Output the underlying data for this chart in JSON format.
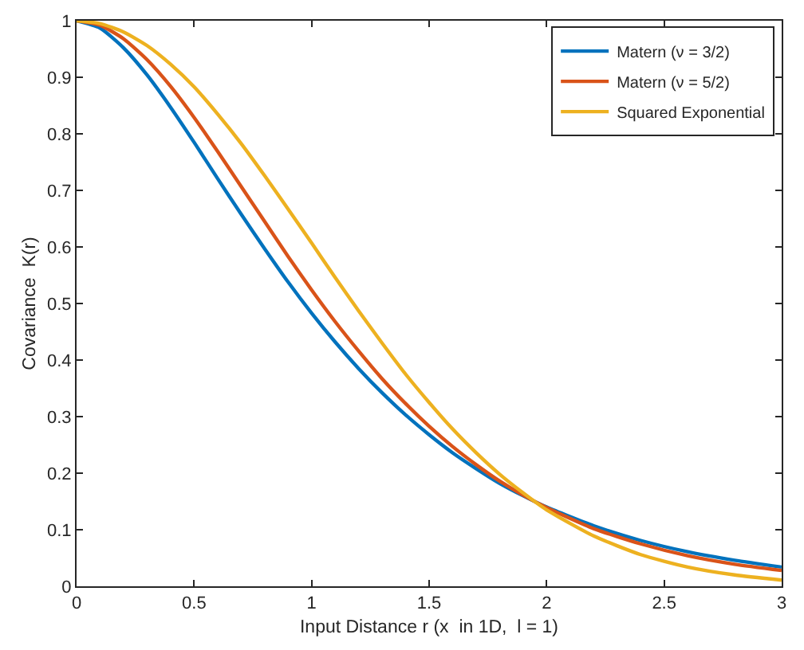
{
  "chart_data": {
    "type": "line",
    "xlabel": "Input Distance r (x  in 1D,  l = 1)",
    "ylabel": "Covariance  K(r)",
    "x": [
      0,
      0.1,
      0.2,
      0.3,
      0.4,
      0.5,
      0.6,
      0.7,
      0.8,
      0.9,
      1,
      1.1,
      1.2,
      1.3,
      1.4,
      1.5,
      1.6,
      1.7,
      1.8,
      1.9,
      2,
      2.2,
      2.4,
      2.6,
      2.8,
      3
    ],
    "series": [
      {
        "name": "Matern (ν = 3/2)",
        "color": "#0072bd",
        "values": [
          1,
          0.987,
          0.952,
          0.904,
          0.847,
          0.785,
          0.721,
          0.658,
          0.597,
          0.538,
          0.483,
          0.432,
          0.385,
          0.342,
          0.303,
          0.268,
          0.236,
          0.208,
          0.182,
          0.16,
          0.14,
          0.107,
          0.081,
          0.061,
          0.046,
          0.034
        ]
      },
      {
        "name": "Matern (ν = 5/2)",
        "color": "#d95319",
        "values": [
          1,
          0.992,
          0.968,
          0.931,
          0.884,
          0.829,
          0.769,
          0.707,
          0.645,
          0.583,
          0.524,
          0.468,
          0.416,
          0.367,
          0.323,
          0.283,
          0.247,
          0.215,
          0.186,
          0.161,
          0.139,
          0.102,
          0.075,
          0.054,
          0.039,
          0.028
        ]
      },
      {
        "name": "Squared Exponential",
        "color": "#edb120",
        "values": [
          1,
          0.995,
          0.98,
          0.956,
          0.923,
          0.883,
          0.835,
          0.783,
          0.726,
          0.667,
          0.607,
          0.546,
          0.487,
          0.43,
          0.375,
          0.325,
          0.278,
          0.236,
          0.198,
          0.165,
          0.135,
          0.089,
          0.056,
          0.034,
          0.02,
          0.011
        ]
      }
    ],
    "xlim": [
      0,
      3
    ],
    "xticks": [
      0,
      0.5,
      1,
      1.5,
      2,
      2.5,
      3
    ],
    "ylim": [
      0,
      1
    ],
    "yticks": [
      0,
      0.1,
      0.2,
      0.3,
      0.4,
      0.5,
      0.6,
      0.7,
      0.8,
      0.9,
      1
    ],
    "grid": false,
    "legend": "top right",
    "line_style": "solid"
  }
}
